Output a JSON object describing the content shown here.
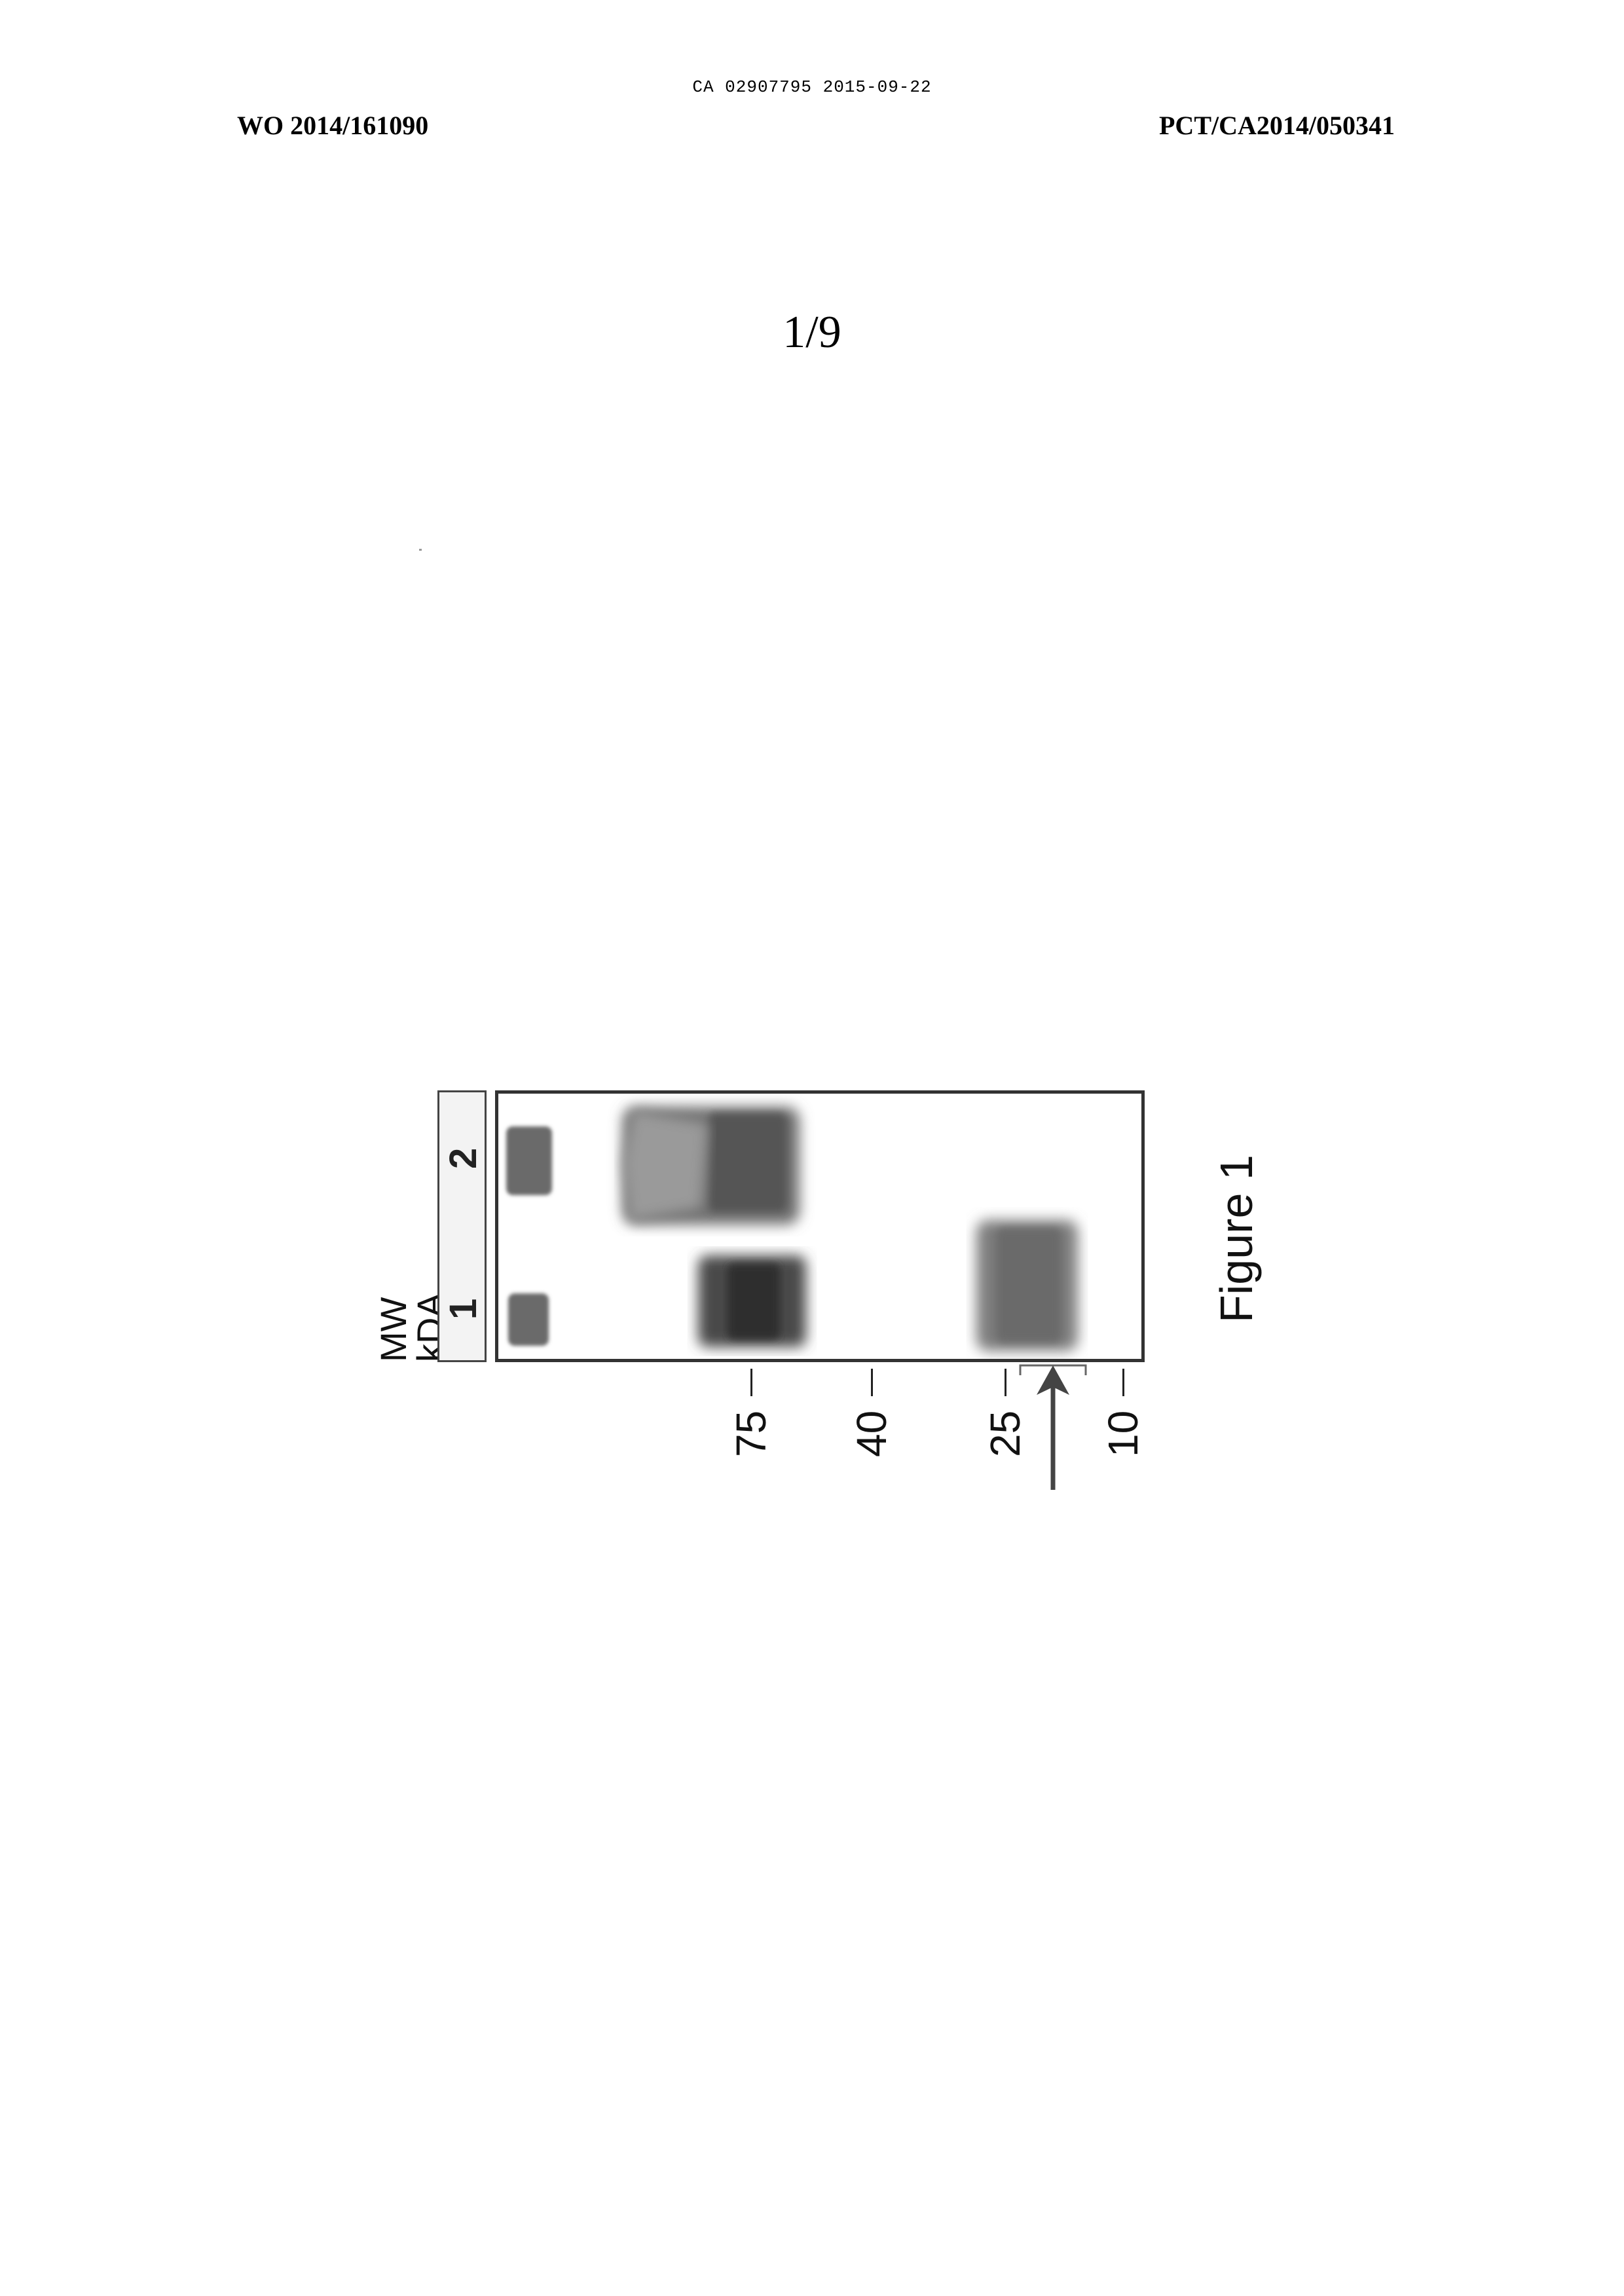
{
  "header": {
    "stamp": "CA 02907795 2015-09-22",
    "publication_number": "WO 2014/161090",
    "application_number": "PCT/CA2014/050341"
  },
  "sheet_number": "1/9",
  "figure": {
    "caption": "Figure 1",
    "marker_header": "MW",
    "marker_unit": "kDA",
    "lanes": [
      "1",
      "2"
    ],
    "markers": [
      "75",
      "40",
      "25",
      "10"
    ]
  }
}
